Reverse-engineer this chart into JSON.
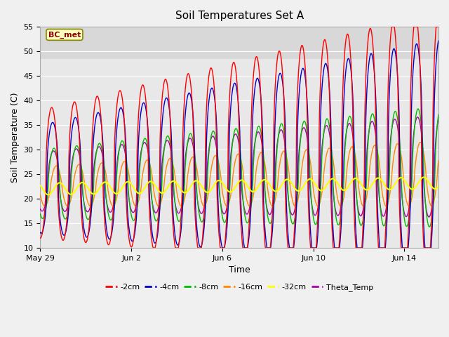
{
  "title": "Soil Temperatures Set A",
  "xlabel": "Time",
  "ylabel": "Soil Temperature (C)",
  "ylim": [
    10,
    55
  ],
  "yticks": [
    10,
    15,
    20,
    25,
    30,
    35,
    40,
    45,
    50,
    55
  ],
  "annotation_text": "BC_met",
  "series_colors": {
    "-2cm": "#ff0000",
    "-4cm": "#0000cc",
    "-8cm": "#00bb00",
    "-16cm": "#ff8800",
    "-32cm": "#ffff00",
    "Theta_Temp": "#aa00aa"
  },
  "background_color": "#f0f0f0",
  "plot_bg_inner": "#e8e8e8",
  "plot_bg_outer": "#d8d8d8",
  "xtick_positions": [
    0,
    4,
    8,
    12,
    16
  ],
  "xtick_labels": [
    "May 29",
    "Jun 2",
    "Jun 6",
    "Jun 10",
    "Jun 14"
  ],
  "xlim": [
    0,
    17.5
  ],
  "legend_labels": [
    "-2cm",
    "-4cm",
    "-8cm",
    "-16cm",
    "-32cm",
    "Theta_Temp"
  ]
}
